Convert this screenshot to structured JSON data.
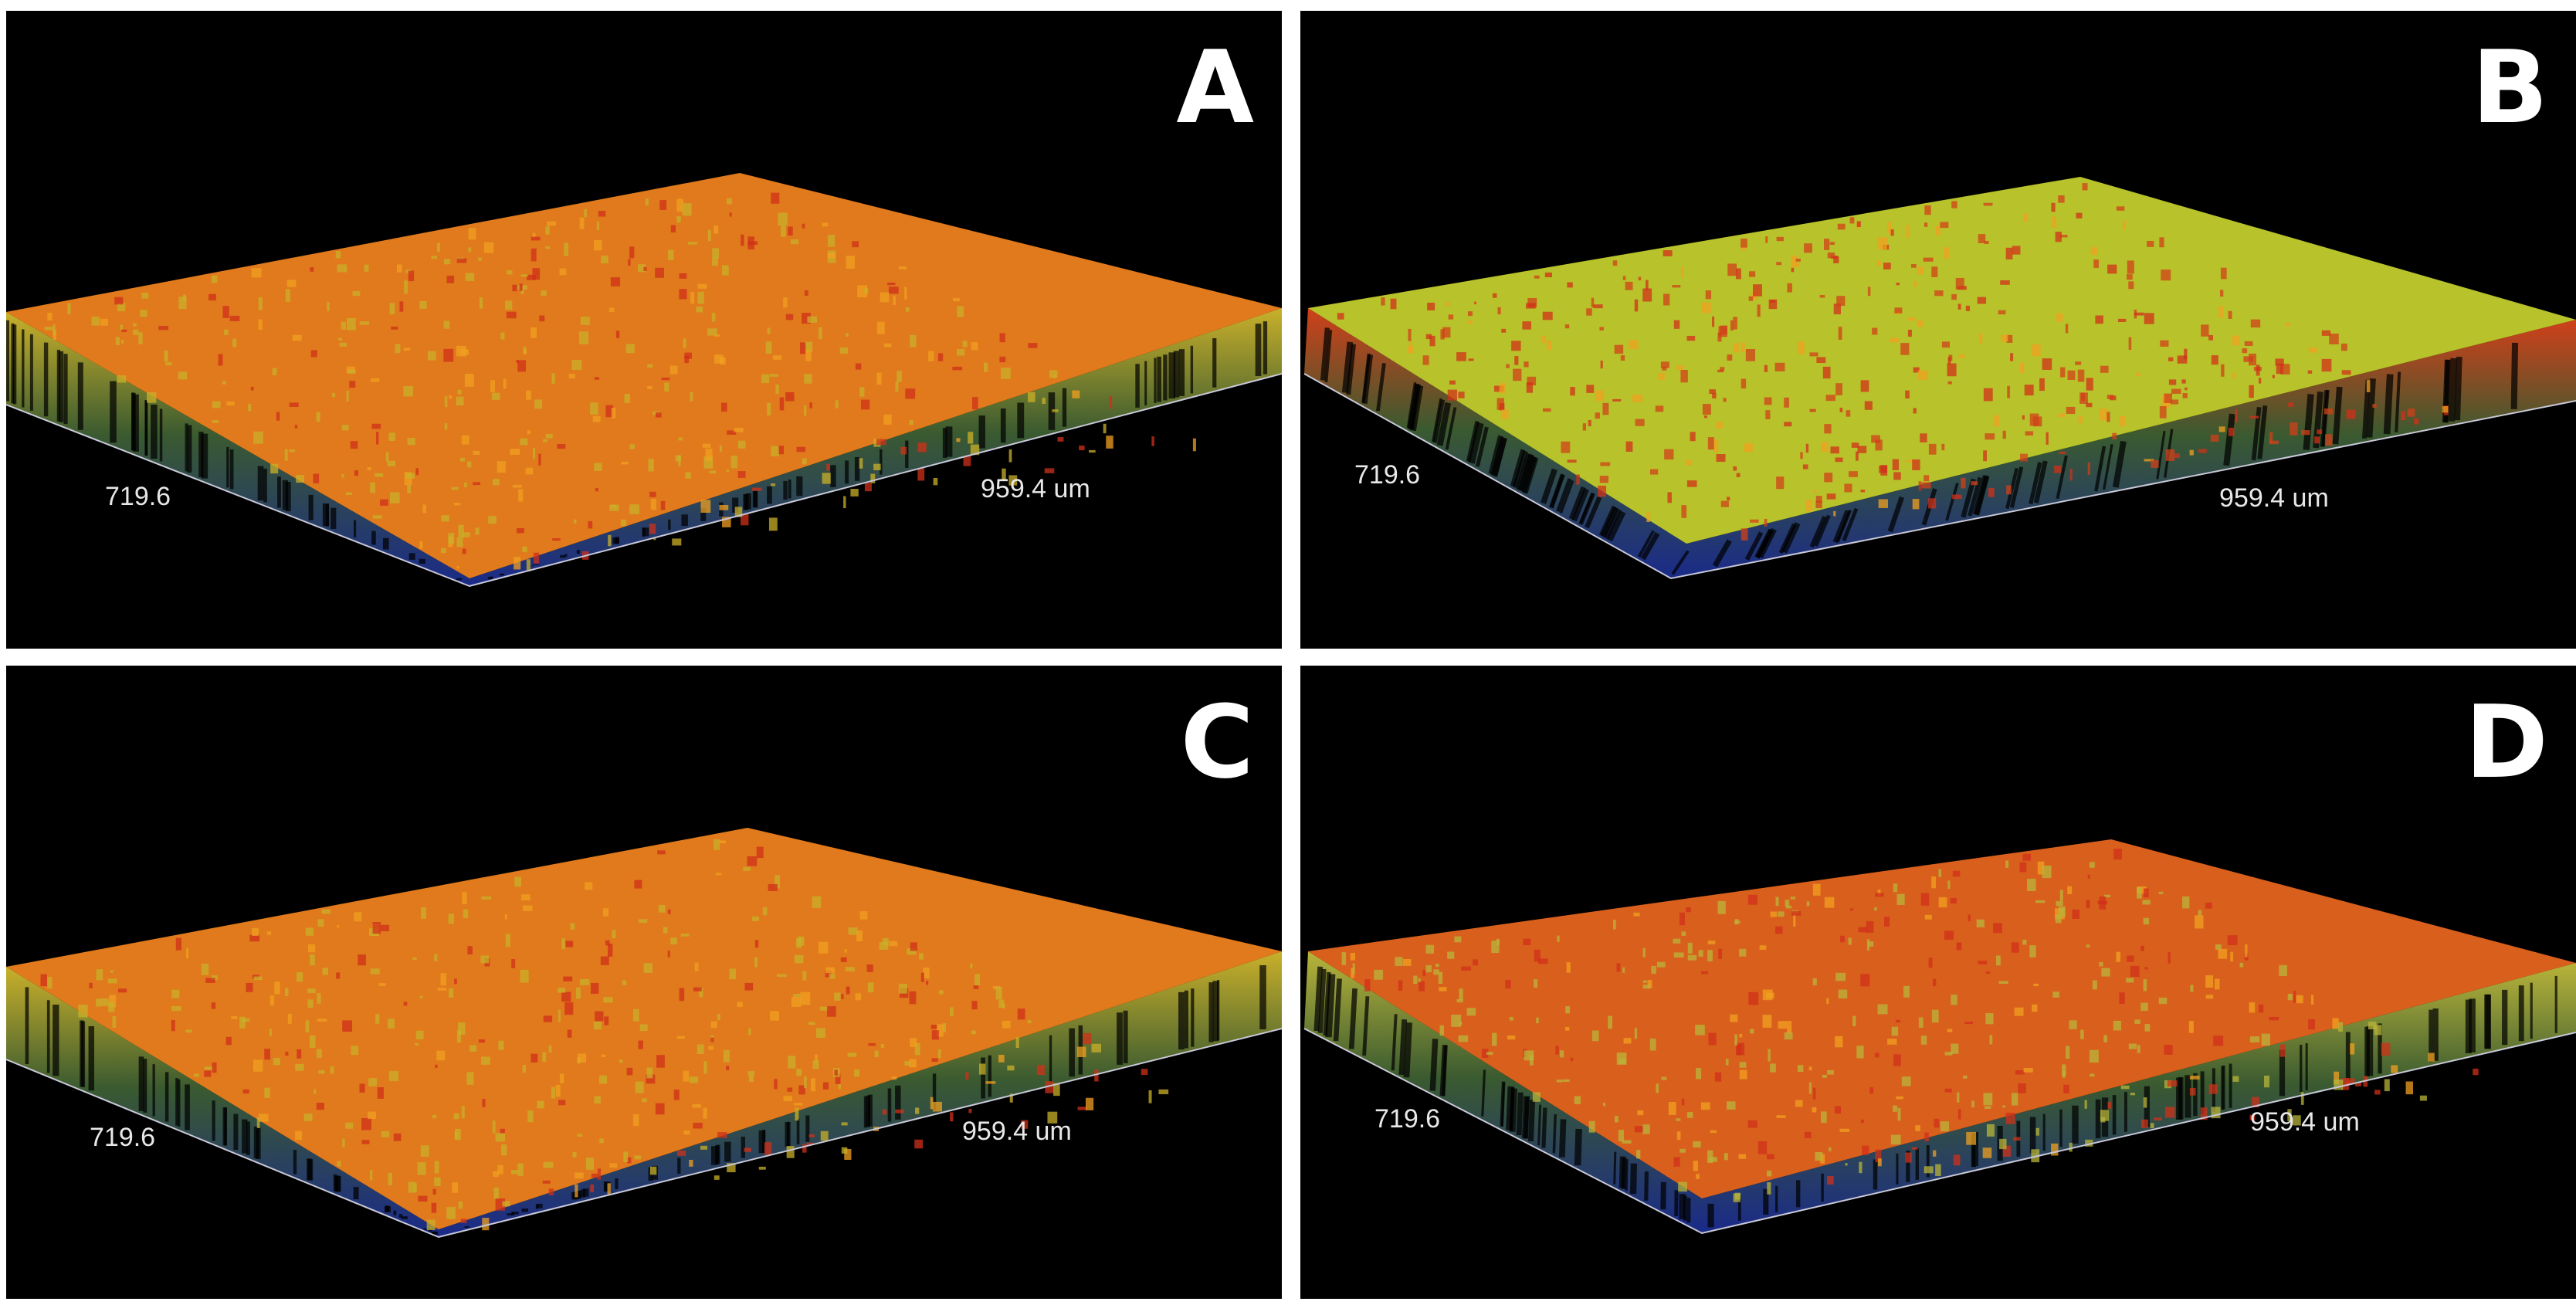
{
  "panels": [
    {
      "label": "A",
      "x_axis": "959.4 um",
      "y_axis": "719.6",
      "dominant_color": "#e07a1c",
      "secondary_color": "#c9b02a"
    },
    {
      "label": "B",
      "x_axis": "959.4 um",
      "y_axis": "719.6",
      "dominant_color": "#b8c22a",
      "secondary_color": "#d0401a"
    },
    {
      "label": "C",
      "x_axis": "959.4 um",
      "y_axis": "719.6",
      "dominant_color": "#e07a1c",
      "secondary_color": "#c9b02a"
    },
    {
      "label": "D",
      "x_axis": "959.4 um",
      "y_axis": "719.6",
      "dominant_color": "#d9601c",
      "secondary_color": "#b8b43a"
    }
  ],
  "colors": {
    "background": "#000000",
    "base_shadow": "#1a2a8a",
    "axis_line": "#c8c8d8"
  }
}
